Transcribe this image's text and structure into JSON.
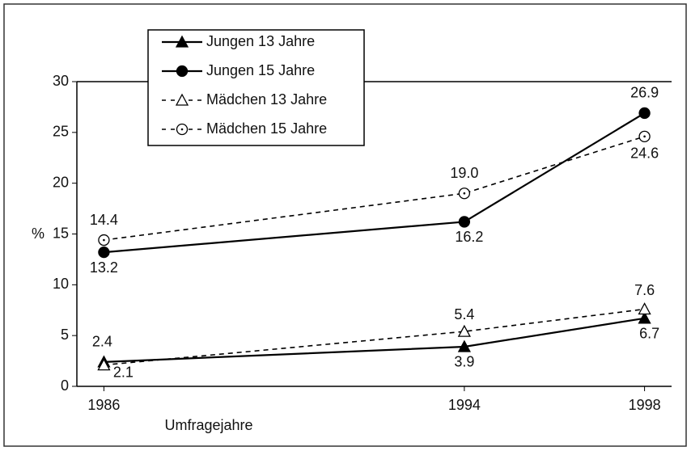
{
  "chart_data": {
    "type": "line",
    "x": [
      1986,
      1994,
      1998
    ],
    "xlim": [
      1985.4,
      1998.6
    ],
    "xticks": [
      1986,
      1994,
      1998
    ],
    "ylim": [
      0,
      30
    ],
    "yticks": [
      0,
      5,
      10,
      15,
      20,
      25,
      30
    ],
    "x_label": "Umfragejahre",
    "y_label": "%",
    "legend": "top-left",
    "series": [
      {
        "name": "Jungen 13 Jahre",
        "color": "#000000",
        "line_style": "solid",
        "marker": "triangle-filled",
        "values": [
          2.4,
          3.9,
          6.7
        ],
        "value_labels": [
          "2.4",
          "3.9",
          "6.7"
        ]
      },
      {
        "name": "Jungen 15 Jahre",
        "color": "#000000",
        "line_style": "solid",
        "marker": "circle-filled",
        "values": [
          13.2,
          16.2,
          26.9
        ],
        "value_labels": [
          "13.2",
          "16.2",
          "26.9"
        ]
      },
      {
        "name": "Mädchen 13 Jahre",
        "color": "#000000",
        "line_style": "dashed",
        "marker": "triangle-open",
        "values": [
          2.1,
          5.4,
          7.6
        ],
        "value_labels": [
          "2.1",
          "5.4",
          "7.6"
        ]
      },
      {
        "name": "Mädchen 15 Jahre",
        "color": "#000000",
        "line_style": "dashed",
        "marker": "circle-open",
        "values": [
          14.4,
          19.0,
          24.6
        ],
        "value_labels": [
          "14.4",
          "19.0",
          "24.6"
        ]
      }
    ]
  }
}
